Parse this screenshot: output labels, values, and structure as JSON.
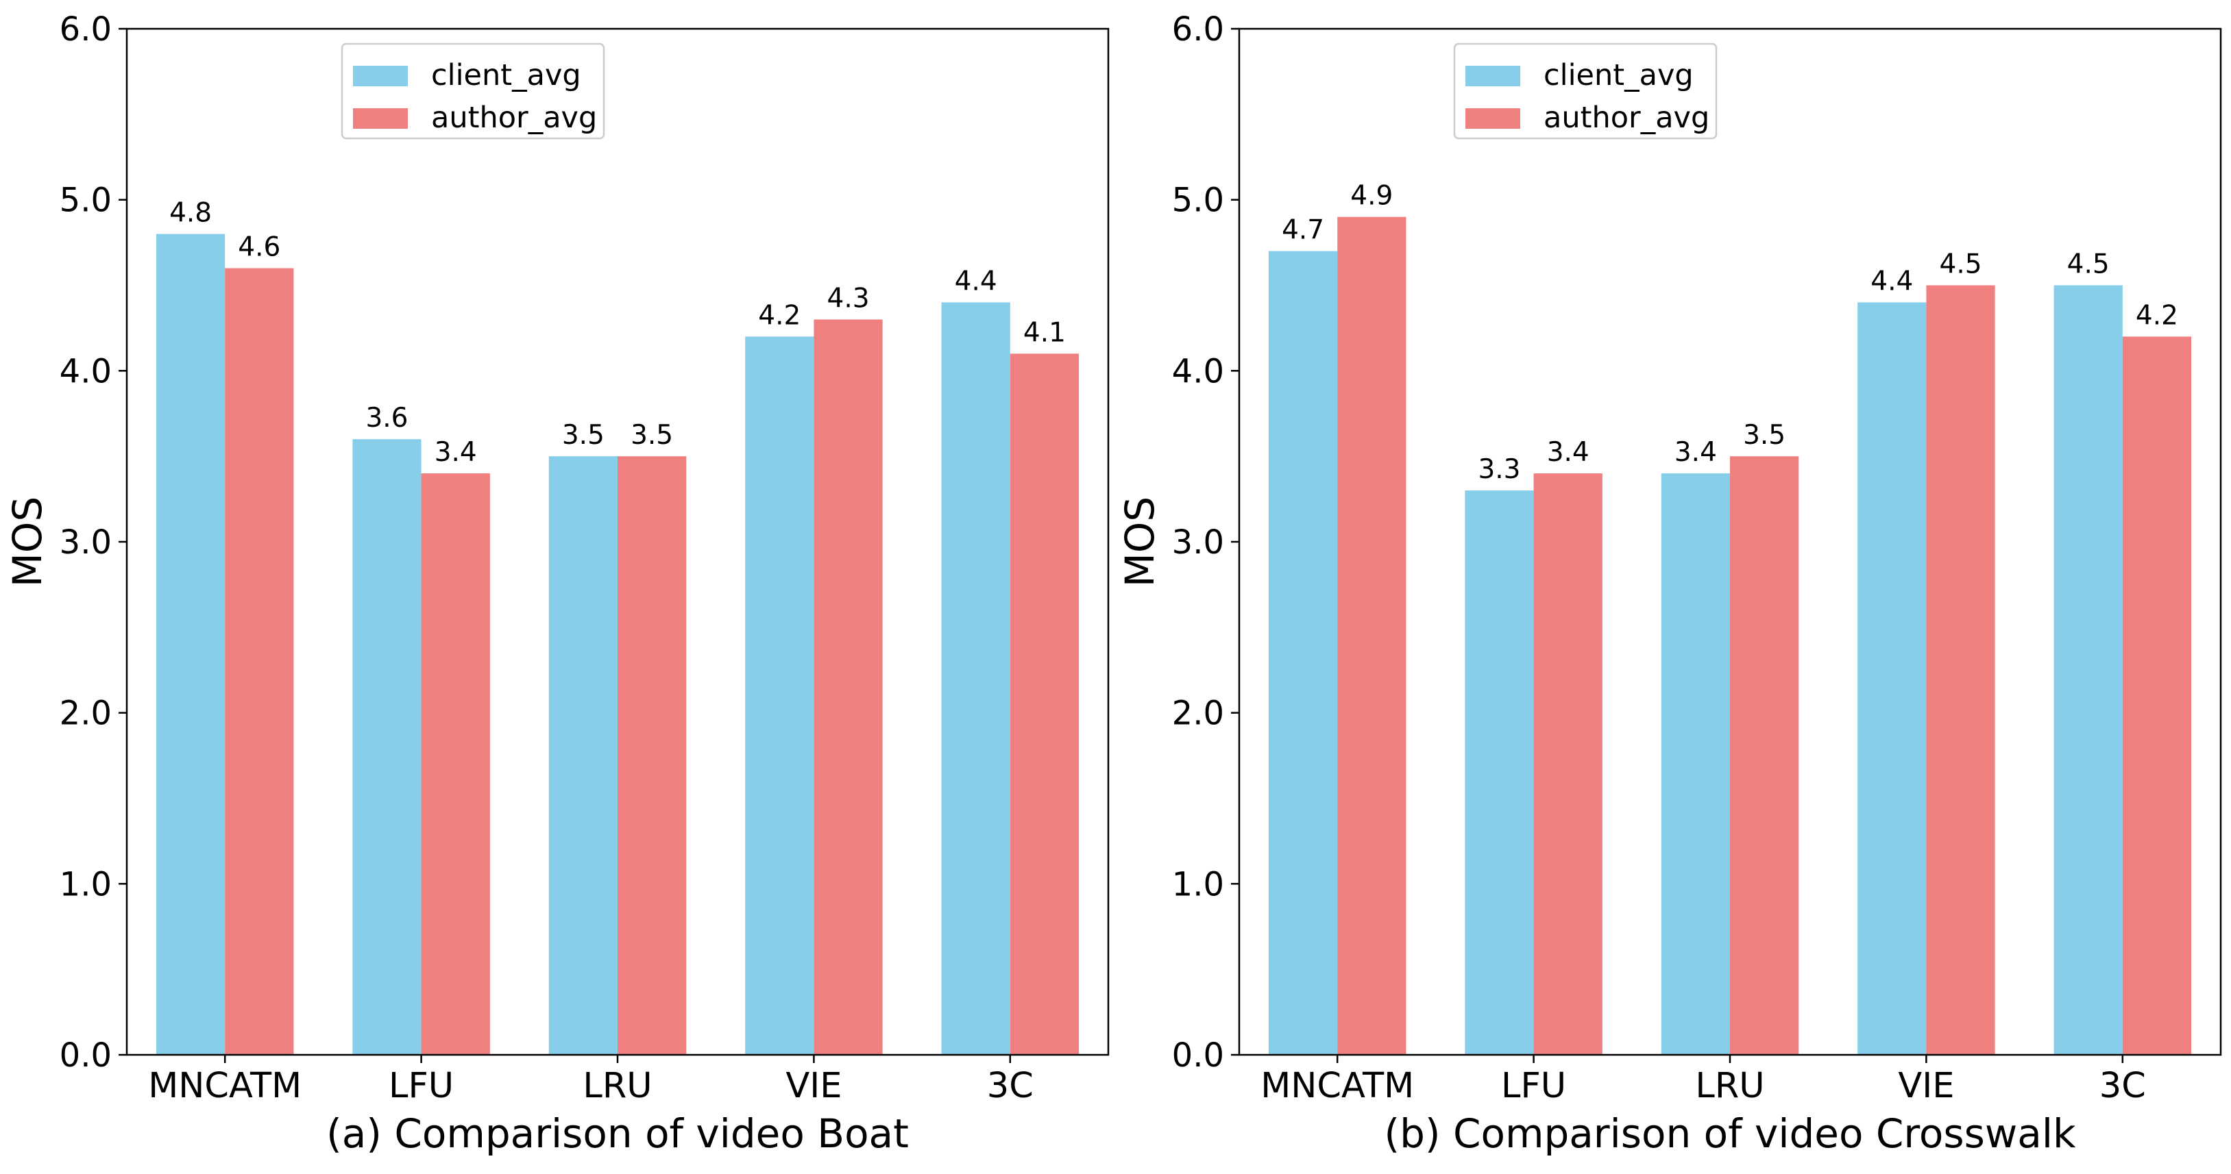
{
  "chart_data": [
    {
      "type": "bar",
      "caption": "(a) Comparison of video Boat",
      "categories": [
        "MNCATM",
        "LFU",
        "LRU",
        "VIE",
        "3C"
      ],
      "series": [
        {
          "name": "client_avg",
          "values": [
            4.8,
            3.6,
            3.5,
            4.2,
            4.4
          ],
          "color": "#87CEEB"
        },
        {
          "name": "author_avg",
          "values": [
            4.6,
            3.4,
            3.5,
            4.3,
            4.1
          ],
          "color": "#F08080"
        }
      ],
      "data_labels": [
        [
          "4.8",
          "3.6",
          "3.5",
          "4.2",
          "4.4"
        ],
        [
          "4.6",
          "3.4",
          "3.5",
          "4.3",
          "4.1"
        ]
      ],
      "ylabel": "MOS",
      "ylim": [
        0,
        6
      ],
      "yticks": [
        "0.0",
        "1.0",
        "2.0",
        "3.0",
        "4.0",
        "5.0",
        "6.0"
      ],
      "grid": false,
      "legend_position": "upper-center"
    },
    {
      "type": "bar",
      "caption": "(b) Comparison of video Crosswalk",
      "categories": [
        "MNCATM",
        "LFU",
        "LRU",
        "VIE",
        "3C"
      ],
      "series": [
        {
          "name": "client_avg",
          "values": [
            4.7,
            3.3,
            3.4,
            4.4,
            4.5
          ],
          "color": "#87CEEB"
        },
        {
          "name": "author_avg",
          "values": [
            4.9,
            3.4,
            3.5,
            4.5,
            4.2
          ],
          "color": "#F08080"
        }
      ],
      "data_labels": [
        [
          "4.7",
          "3.3",
          "3.4",
          "4.4",
          "4.5"
        ],
        [
          "4.9",
          "3.4",
          "3.5",
          "4.5",
          "4.2"
        ]
      ],
      "ylabel": "MOS",
      "ylim": [
        0,
        6
      ],
      "yticks": [
        "0.0",
        "1.0",
        "2.0",
        "3.0",
        "4.0",
        "5.0",
        "6.0"
      ],
      "grid": false,
      "legend_position": "upper-center"
    }
  ]
}
